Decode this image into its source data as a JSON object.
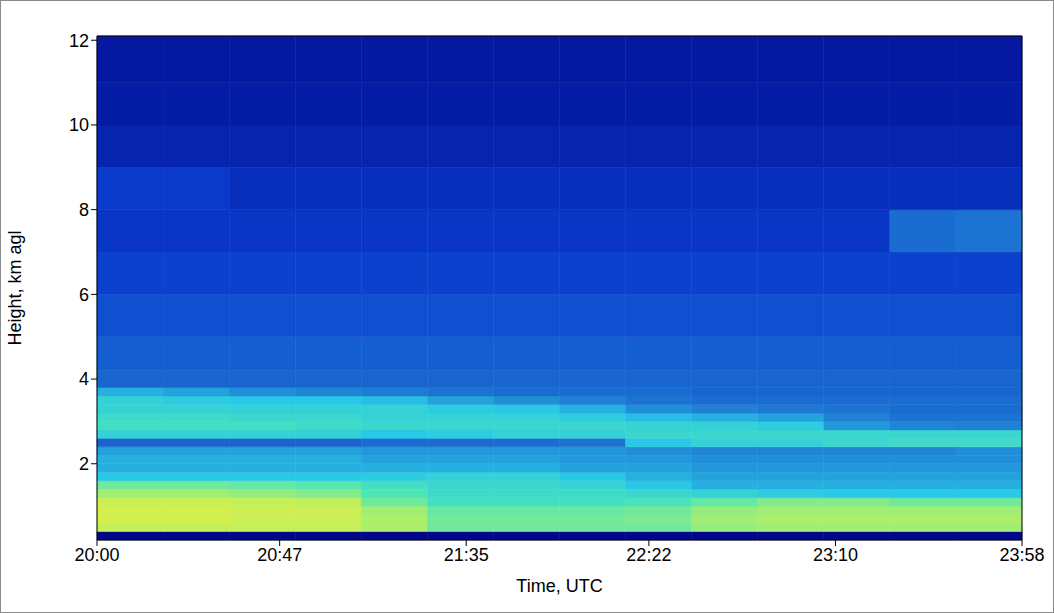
{
  "chart_data": {
    "type": "heatmap",
    "xlabel": "Time, UTC",
    "ylabel": "Height, km agl",
    "xlim": [
      0,
      238
    ],
    "xticks": [
      {
        "value": 0,
        "label": "20:00"
      },
      {
        "value": 47,
        "label": "20:47"
      },
      {
        "value": 95,
        "label": "21:35"
      },
      {
        "value": 142,
        "label": "22:22"
      },
      {
        "value": 190,
        "label": "23:10"
      },
      {
        "value": 238,
        "label": "23:58"
      }
    ],
    "ylim": [
      0.2,
      12.1
    ],
    "yticks": [
      2,
      4,
      6,
      8,
      10,
      12
    ],
    "x_edges": [
      0,
      17,
      34,
      51,
      68,
      85,
      102,
      119,
      136,
      153,
      170,
      187,
      204,
      221,
      238
    ],
    "y_edges": [
      0.2,
      0.4,
      0.6,
      0.8,
      1.0,
      1.2,
      1.4,
      1.6,
      1.8,
      2.0,
      2.2,
      2.4,
      2.6,
      2.8,
      3.0,
      3.2,
      3.4,
      3.6,
      3.8,
      4.2,
      5,
      6,
      7,
      8,
      9,
      10,
      11,
      12.1
    ],
    "zlim": [
      0,
      1
    ],
    "colors": [
      "#000080",
      "#0a3ccd",
      "#1e78d2",
      "#28c8e6",
      "#50e6b4",
      "#b4f064",
      "#f0f03c"
    ],
    "cells": [
      [
        0.02,
        0.02,
        0.02,
        0.02,
        0.02,
        0.02,
        0.02,
        0.02,
        0.02,
        0.02,
        0.02,
        0.02,
        0.02,
        0.02
      ],
      [
        0.88,
        0.88,
        0.88,
        0.88,
        0.82,
        0.72,
        0.72,
        0.72,
        0.72,
        0.78,
        0.8,
        0.8,
        0.8,
        0.8
      ],
      [
        0.92,
        0.92,
        0.9,
        0.9,
        0.82,
        0.72,
        0.72,
        0.72,
        0.74,
        0.8,
        0.82,
        0.82,
        0.82,
        0.82
      ],
      [
        0.92,
        0.92,
        0.9,
        0.9,
        0.8,
        0.7,
        0.7,
        0.7,
        0.72,
        0.78,
        0.8,
        0.8,
        0.8,
        0.8
      ],
      [
        0.9,
        0.9,
        0.88,
        0.86,
        0.72,
        0.62,
        0.62,
        0.62,
        0.64,
        0.7,
        0.75,
        0.75,
        0.72,
        0.72
      ],
      [
        0.8,
        0.8,
        0.78,
        0.75,
        0.66,
        0.6,
        0.6,
        0.6,
        0.58,
        0.55,
        0.52,
        0.5,
        0.5,
        0.5
      ],
      [
        0.72,
        0.72,
        0.7,
        0.68,
        0.62,
        0.58,
        0.58,
        0.56,
        0.5,
        0.45,
        0.45,
        0.45,
        0.45,
        0.45
      ],
      [
        0.5,
        0.5,
        0.5,
        0.5,
        0.52,
        0.55,
        0.55,
        0.5,
        0.45,
        0.42,
        0.42,
        0.42,
        0.42,
        0.42
      ],
      [
        0.45,
        0.45,
        0.45,
        0.45,
        0.45,
        0.45,
        0.45,
        0.42,
        0.42,
        0.4,
        0.4,
        0.4,
        0.4,
        0.4
      ],
      [
        0.45,
        0.45,
        0.45,
        0.45,
        0.42,
        0.42,
        0.42,
        0.4,
        0.4,
        0.38,
        0.38,
        0.38,
        0.38,
        0.38
      ],
      [
        0.42,
        0.42,
        0.42,
        0.42,
        0.4,
        0.4,
        0.4,
        0.4,
        0.38,
        0.36,
        0.36,
        0.36,
        0.36,
        0.38
      ],
      [
        0.28,
        0.28,
        0.28,
        0.28,
        0.3,
        0.3,
        0.3,
        0.32,
        0.5,
        0.55,
        0.55,
        0.58,
        0.6,
        0.6
      ],
      [
        0.55,
        0.55,
        0.55,
        0.55,
        0.5,
        0.52,
        0.55,
        0.55,
        0.58,
        0.58,
        0.58,
        0.58,
        0.58,
        0.58
      ],
      [
        0.62,
        0.62,
        0.62,
        0.6,
        0.58,
        0.58,
        0.58,
        0.58,
        0.56,
        0.55,
        0.52,
        0.4,
        0.36,
        0.35
      ],
      [
        0.6,
        0.6,
        0.58,
        0.58,
        0.56,
        0.56,
        0.55,
        0.52,
        0.48,
        0.45,
        0.42,
        0.35,
        0.32,
        0.32
      ],
      [
        0.56,
        0.56,
        0.55,
        0.55,
        0.55,
        0.52,
        0.5,
        0.45,
        0.38,
        0.35,
        0.33,
        0.32,
        0.3,
        0.3
      ],
      [
        0.55,
        0.52,
        0.5,
        0.5,
        0.48,
        0.42,
        0.38,
        0.35,
        0.32,
        0.3,
        0.3,
        0.3,
        0.3,
        0.3
      ],
      [
        0.45,
        0.42,
        0.38,
        0.36,
        0.34,
        0.32,
        0.3,
        0.3,
        0.3,
        0.28,
        0.28,
        0.28,
        0.28,
        0.28
      ],
      [
        0.28,
        0.28,
        0.28,
        0.28,
        0.28,
        0.28,
        0.28,
        0.28,
        0.28,
        0.28,
        0.28,
        0.28,
        0.28,
        0.28
      ],
      [
        0.26,
        0.26,
        0.26,
        0.26,
        0.26,
        0.26,
        0.26,
        0.26,
        0.26,
        0.26,
        0.26,
        0.26,
        0.26,
        0.26
      ],
      [
        0.22,
        0.22,
        0.22,
        0.22,
        0.22,
        0.22,
        0.22,
        0.22,
        0.22,
        0.22,
        0.22,
        0.22,
        0.22,
        0.22
      ],
      [
        0.18,
        0.18,
        0.18,
        0.18,
        0.18,
        0.18,
        0.18,
        0.18,
        0.18,
        0.18,
        0.18,
        0.18,
        0.18,
        0.18
      ],
      [
        0.15,
        0.15,
        0.15,
        0.15,
        0.15,
        0.15,
        0.15,
        0.15,
        0.15,
        0.15,
        0.15,
        0.15,
        0.3,
        0.32
      ],
      [
        0.16,
        0.16,
        0.13,
        0.13,
        0.13,
        0.13,
        0.13,
        0.13,
        0.13,
        0.13,
        0.13,
        0.13,
        0.13,
        0.13
      ],
      [
        0.1,
        0.1,
        0.1,
        0.1,
        0.1,
        0.1,
        0.1,
        0.1,
        0.1,
        0.1,
        0.1,
        0.1,
        0.1,
        0.1
      ],
      [
        0.08,
        0.08,
        0.08,
        0.08,
        0.08,
        0.08,
        0.08,
        0.08,
        0.08,
        0.08,
        0.08,
        0.08,
        0.08,
        0.08
      ],
      [
        0.07,
        0.07,
        0.07,
        0.07,
        0.07,
        0.07,
        0.07,
        0.07,
        0.07,
        0.07,
        0.07,
        0.07,
        0.07,
        0.07
      ]
    ]
  }
}
